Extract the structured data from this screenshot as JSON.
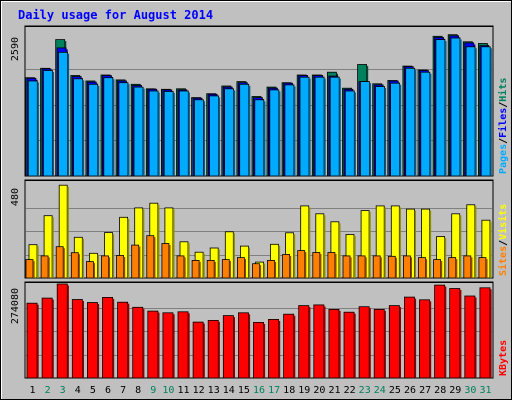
{
  "chart_data": {
    "type": "bar",
    "title": "Daily usage for August 2014",
    "categories": [
      "1",
      "2",
      "3",
      "4",
      "5",
      "6",
      "7",
      "8",
      "9",
      "10",
      "11",
      "12",
      "13",
      "14",
      "15",
      "16",
      "17",
      "18",
      "19",
      "20",
      "21",
      "22",
      "23",
      "24",
      "25",
      "26",
      "27",
      "28",
      "29",
      "30",
      "31"
    ],
    "weekend_days": [
      "2",
      "3",
      "9",
      "10",
      "16",
      "17",
      "23",
      "24",
      "30",
      "31"
    ],
    "panels": [
      {
        "id": "top",
        "ytick": "2590",
        "ymax": 2590,
        "legend": [
          {
            "label": "Pages",
            "color": "#00aaff"
          },
          {
            "sep": "/"
          },
          {
            "label": "Files",
            "color": "#0000ff"
          },
          {
            "sep": "/"
          },
          {
            "label": "Hits",
            "color": "#008060"
          }
        ],
        "series": [
          {
            "name": "Hits",
            "color": "#00805c",
            "values": [
              1780,
              1950,
              2470,
              1820,
              1720,
              1830,
              1740,
              1660,
              1580,
              1570,
              1580,
              1420,
              1490,
              1630,
              1710,
              1440,
              1610,
              1690,
              1830,
              1830,
              1880,
              1590,
              2020,
              1670,
              1730,
              1990,
              1920,
              2530,
              2560,
              2430,
              2400
            ]
          },
          {
            "name": "Files",
            "color": "#0000ff",
            "values": [
              1770,
              1940,
              2320,
              1800,
              1700,
              1820,
              1720,
              1640,
              1570,
              1560,
              1560,
              1410,
              1480,
              1610,
              1690,
              1420,
              1590,
              1680,
              1820,
              1820,
              1810,
              1570,
              1710,
              1650,
              1720,
              1980,
              1910,
              2510,
              2540,
              2410,
              2360
            ]
          },
          {
            "name": "Pages",
            "color": "#00aaff",
            "values": [
              1720,
              1910,
              2240,
              1760,
              1660,
              1780,
              1690,
              1610,
              1540,
              1530,
              1540,
              1380,
              1450,
              1580,
              1660,
              1380,
              1560,
              1650,
              1790,
              1790,
              1790,
              1540,
              1710,
              1620,
              1680,
              1950,
              1880,
              2470,
              2500,
              2340,
              2340
            ]
          }
        ]
      },
      {
        "id": "middle",
        "ytick": "480",
        "ymax": 480,
        "legend": [
          {
            "label": "Sites",
            "color": "#ff8000"
          },
          {
            "sep": "/"
          },
          {
            "label": "Visits",
            "color": "#ffff00"
          }
        ],
        "series": [
          {
            "name": "Visits",
            "color": "#ffff00",
            "values": [
              170,
              318,
              474,
              208,
              126,
              232,
              310,
              358,
              382,
              358,
              185,
              132,
              153,
              236,
              163,
              81,
              172,
              231,
              368,
              328,
              287,
              222,
              344,
              368,
              368,
              352,
              352,
              212,
              328,
              374,
              295
            ]
          },
          {
            "name": "Sites",
            "color": "#ff8000",
            "values": [
              94,
              113,
              160,
              129,
              84,
              113,
              115,
              168,
              216,
              176,
              113,
              90,
              90,
              94,
              104,
              73,
              90,
              120,
              140,
              130,
              130,
              113,
              113,
              113,
              111,
              113,
              104,
              94,
              104,
              113,
              104
            ]
          }
        ]
      },
      {
        "id": "bottom",
        "ytick": "274080",
        "ymax": 274080,
        "legend": [
          {
            "label": "KBytes",
            "color": "#ff0000"
          }
        ],
        "series": [
          {
            "name": "KBytes",
            "color": "#ff0000",
            "values": [
              218000,
              233000,
              274080,
              229000,
              220000,
              235000,
              221000,
              206000,
              195000,
              190000,
              193000,
              163000,
              168000,
              182000,
              190000,
              162000,
              171000,
              186000,
              211000,
              213000,
              200000,
              192000,
              208000,
              200000,
              211000,
              236000,
              228000,
              271000,
              261000,
              239000,
              263000
            ]
          }
        ]
      }
    ]
  }
}
